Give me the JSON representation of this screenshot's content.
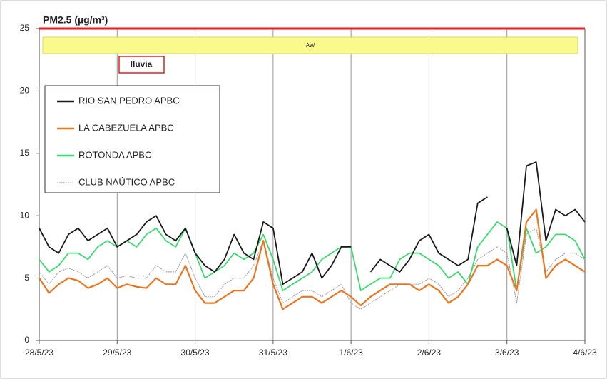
{
  "chart_data": {
    "type": "line",
    "title": "PM2.5 (µg/m³)",
    "x": [
      0,
      0.125,
      0.25,
      0.375,
      0.5,
      0.625,
      0.75,
      0.875,
      1,
      1.125,
      1.25,
      1.375,
      1.5,
      1.625,
      1.75,
      1.875,
      2,
      2.125,
      2.25,
      2.375,
      2.5,
      2.625,
      2.75,
      2.875,
      3,
      3.125,
      3.25,
      3.375,
      3.5,
      3.625,
      3.75,
      3.875,
      4,
      4.125,
      4.25,
      4.375,
      4.5,
      4.625,
      4.75,
      4.875,
      5,
      5.125,
      5.25,
      5.375,
      5.5,
      5.625,
      5.75,
      5.875,
      6,
      6.125,
      6.25,
      6.375,
      6.5,
      6.625,
      6.75,
      6.875,
      7
    ],
    "series": [
      {
        "name": "RIO SAN PEDRO APBC",
        "color": "#1a1a1a",
        "values": [
          9,
          7.5,
          7,
          8.5,
          9,
          8,
          8.5,
          9,
          7.5,
          8,
          8.5,
          9.5,
          10,
          8.5,
          8,
          9,
          7,
          6,
          5.5,
          6.5,
          8.5,
          7,
          6.5,
          9.5,
          9,
          4.5,
          5,
          5.5,
          7,
          5,
          6,
          7.5,
          7.5,
          null,
          5.5,
          6.5,
          6,
          5.5,
          6.5,
          8,
          8.5,
          7,
          6.5,
          6,
          6.5,
          11,
          11.5,
          null,
          9,
          6,
          14,
          14.3,
          8,
          10.5,
          10,
          10.5,
          9.5
        ]
      },
      {
        "name": "LA CABEZUELA  APBC",
        "color": "#e87722",
        "values": [
          5,
          3.8,
          4.5,
          5,
          4.8,
          4.2,
          4.5,
          5,
          4.2,
          4.5,
          4.3,
          4.2,
          5,
          4.5,
          4.5,
          6,
          4,
          3,
          3,
          3.5,
          4,
          4,
          5,
          8,
          4.5,
          2.5,
          3,
          3.5,
          3.5,
          3,
          3.5,
          4,
          3.5,
          2.8,
          3.5,
          4,
          4.5,
          4.5,
          4.5,
          4,
          4.5,
          4,
          3,
          3.5,
          4.5,
          6,
          6,
          6.5,
          6,
          4,
          9.5,
          10.5,
          5,
          6,
          6.5,
          6,
          5.5
        ]
      },
      {
        "name": "ROTONDA  APBC",
        "color": "#3cd870",
        "values": [
          6.5,
          5.5,
          6,
          7,
          7,
          6.5,
          7.5,
          8,
          7.5,
          8,
          7.5,
          8.5,
          9,
          8,
          7.5,
          9,
          7,
          5,
          5.5,
          6,
          7,
          6.5,
          7,
          8.5,
          6.5,
          4,
          4.5,
          5,
          5.5,
          6.5,
          7,
          7.5,
          7.5,
          4,
          4.5,
          5,
          5,
          6.5,
          7,
          7,
          6.5,
          6,
          5,
          5.5,
          4.5,
          7.5,
          8.5,
          9.5,
          9,
          4,
          9,
          7,
          7.5,
          8.5,
          8.5,
          8,
          6.5
        ]
      },
      {
        "name": "CLUB NAÚTICO  APBC",
        "color": "#9a9a9a",
        "values": [
          5.5,
          4.5,
          5.5,
          5.8,
          5.5,
          5,
          5.5,
          6,
          5,
          5.2,
          5,
          5,
          6,
          5.5,
          5.5,
          7,
          5,
          3.5,
          3.5,
          4.5,
          5,
          5,
          6,
          8,
          5,
          3,
          3.5,
          4,
          4,
          3.5,
          4,
          4.5,
          3,
          2.5,
          3,
          3.5,
          4,
          4.5,
          4.5,
          4.5,
          5,
          4.5,
          3.5,
          4,
          5,
          6.5,
          7,
          7.5,
          7,
          3,
          8.5,
          9,
          5.5,
          6.5,
          7,
          7,
          6.5
        ]
      }
    ],
    "xlim": [
      0,
      7
    ],
    "xticks": [
      {
        "value": 0,
        "label": "28/5/23"
      },
      {
        "value": 1,
        "label": "29/5/23"
      },
      {
        "value": 2,
        "label": "30/5/23"
      },
      {
        "value": 3,
        "label": "31/5/23"
      },
      {
        "value": 4,
        "label": "1/6/23"
      },
      {
        "value": 5,
        "label": "2/6/23"
      },
      {
        "value": 6,
        "label": "3/6/23"
      },
      {
        "value": 7,
        "label": "4/6/23"
      }
    ],
    "ylim": [
      0,
      25
    ],
    "yticks": [
      0,
      5,
      10,
      15,
      20,
      25
    ],
    "reference_line": {
      "value": 25,
      "color": "#e02020"
    },
    "annotations": [
      "AW",
      "lluvia"
    ],
    "grid": "x",
    "legend": "upper left"
  }
}
